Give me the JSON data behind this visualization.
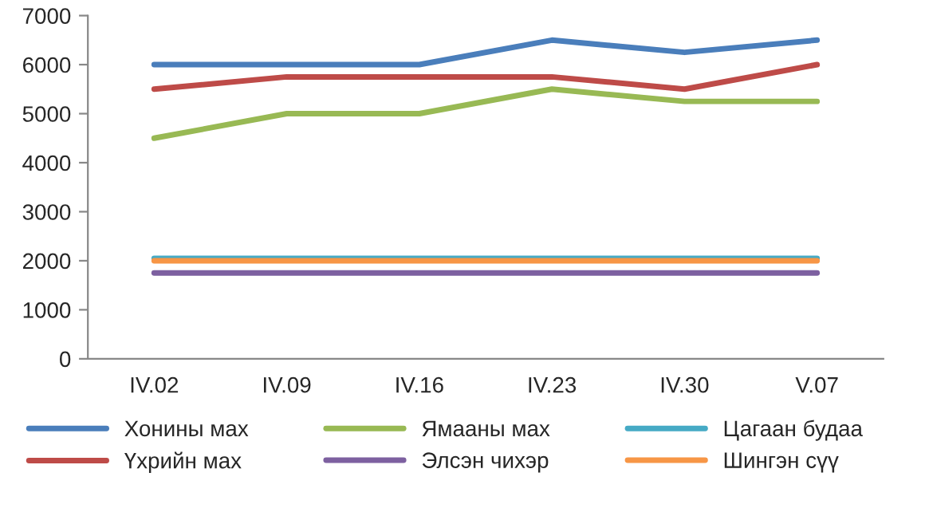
{
  "chart_data": {
    "type": "line",
    "categories": [
      "IV.02",
      "IV.09",
      "IV.16",
      "IV.23",
      "IV.30",
      "V.07"
    ],
    "series": [
      {
        "name": "Хонины мах",
        "color": "#4a7ebb",
        "values": [
          6000,
          6000,
          6000,
          6500,
          6250,
          6500
        ]
      },
      {
        "name": "Үхрийн мах",
        "color": "#be4b48",
        "values": [
          5500,
          5750,
          5750,
          5750,
          5500,
          6000
        ]
      },
      {
        "name": "Ямааны мах",
        "color": "#98b954",
        "values": [
          4500,
          5000,
          5000,
          5500,
          5250,
          5250
        ]
      },
      {
        "name": "Элсэн чихэр",
        "color": "#7d60a0",
        "values": [
          1750,
          1750,
          1750,
          1750,
          1750,
          1750
        ]
      },
      {
        "name": "Цагаан будаа",
        "color": "#46aac5",
        "values": [
          2050,
          2050,
          2050,
          2050,
          2050,
          2050
        ]
      },
      {
        "name": "Шингэн сүү",
        "color": "#f79646",
        "values": [
          2000,
          2000,
          2000,
          2000,
          2000,
          2000
        ]
      }
    ],
    "ylim": [
      0,
      7000
    ],
    "yticks": [
      0,
      1000,
      2000,
      3000,
      4000,
      5000,
      6000,
      7000
    ],
    "grid": false,
    "legend": "bottom",
    "marker": "none",
    "line_style": "solid"
  }
}
